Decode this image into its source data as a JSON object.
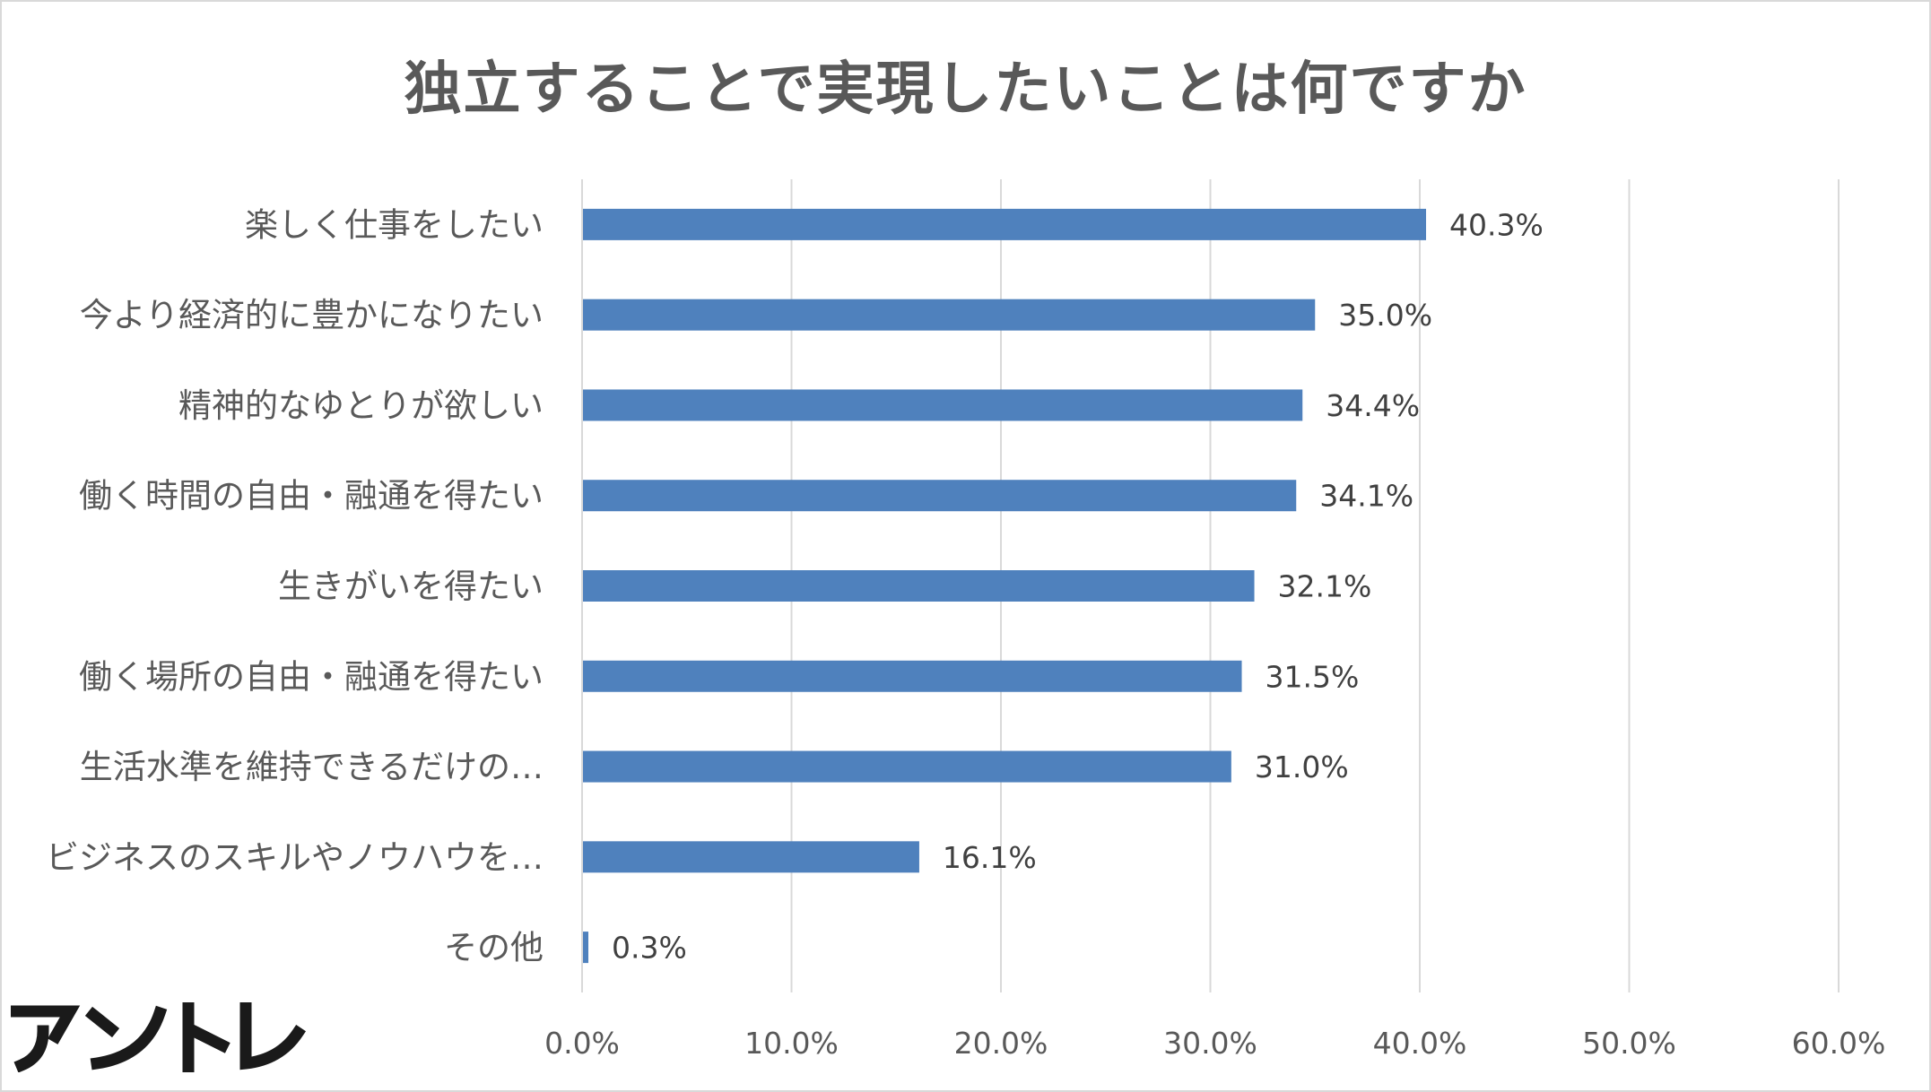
{
  "chart_data": {
    "type": "bar",
    "orientation": "horizontal",
    "title": "独立することで実現したいことは何ですか",
    "categories": [
      "楽しく仕事をしたい",
      "今より経済的に豊かになりたい",
      "精神的なゆとりが欲しい",
      "働く時間の自由・融通を得たい",
      "生きがいを得たい",
      "働く場所の自由・融通を得たい",
      "生活水準を維持できるだけの…",
      "ビジネスのスキルやノウハウを…",
      "その他"
    ],
    "values": [
      40.3,
      35.0,
      34.4,
      34.1,
      32.1,
      31.5,
      31.0,
      16.1,
      0.3
    ],
    "value_labels": [
      "40.3%",
      "35.0%",
      "34.4%",
      "34.1%",
      "32.1%",
      "31.5%",
      "31.0%",
      "16.1%",
      "0.3%"
    ],
    "xlim": [
      0,
      60
    ],
    "x_ticks": [
      0,
      10,
      20,
      30,
      40,
      50,
      60
    ],
    "x_tick_labels": [
      "0.0%",
      "10.0%",
      "20.0%",
      "30.0%",
      "40.0%",
      "50.0%",
      "60.0%"
    ],
    "grid": true,
    "bar_color": "#4f81bd",
    "legend": "none"
  },
  "logo": {
    "text": "アントレ",
    "color": "#1a1a1a"
  }
}
